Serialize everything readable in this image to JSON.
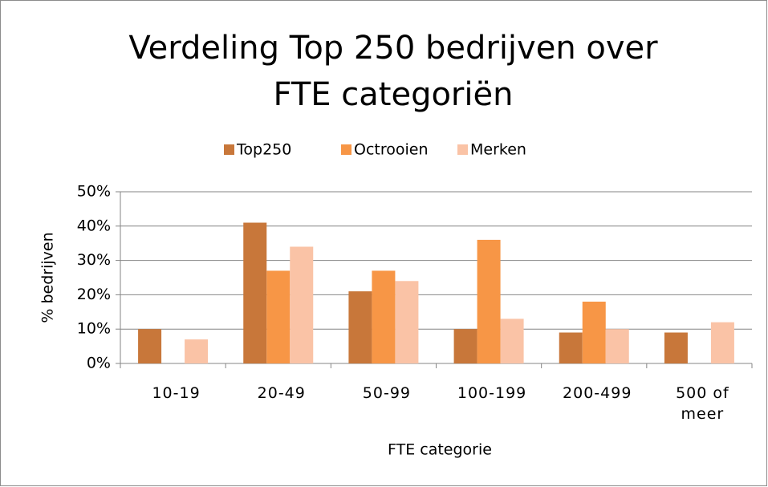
{
  "chart_data": {
    "type": "bar",
    "title": [
      "Verdeling Top 250 bedrijven over",
      "FTE categoriën"
    ],
    "categories": [
      "10-19",
      "20-49",
      "50-99",
      "100-199",
      "200-499",
      "500 of meer"
    ],
    "series": [
      {
        "name": "Top250",
        "color": "#c8773a",
        "values": [
          10,
          41,
          21,
          10,
          9,
          9
        ]
      },
      {
        "name": "Octrooien",
        "color": "#f79646",
        "values": [
          0,
          27,
          27,
          36,
          18,
          0
        ]
      },
      {
        "name": "Merken",
        "color": "#fac3a6",
        "values": [
          7,
          34,
          24,
          13,
          10,
          12
        ]
      }
    ],
    "x_label": "FTE categorie",
    "y_label": "% bedrijven",
    "ylim": [
      0,
      50
    ],
    "yticks": [
      {
        "value": 0,
        "label": "0%"
      },
      {
        "value": 10,
        "label": "10%"
      },
      {
        "value": 20,
        "label": "20%"
      },
      {
        "value": 30,
        "label": "30%"
      },
      {
        "value": 40,
        "label": "40%"
      },
      {
        "value": 50,
        "label": "50%"
      }
    ],
    "grid": true,
    "legend": "top"
  }
}
